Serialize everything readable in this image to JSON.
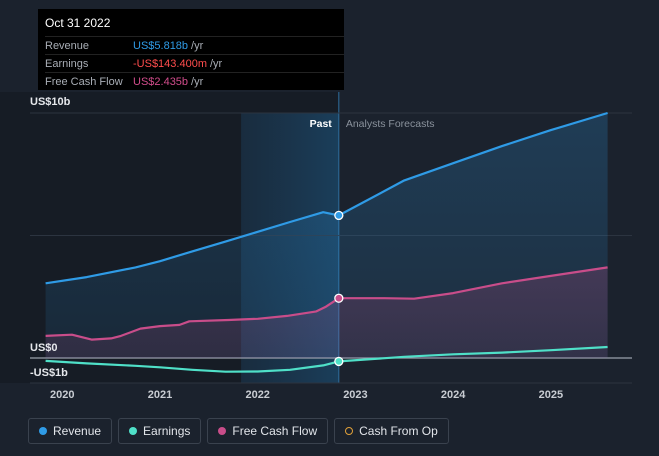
{
  "tooltip": {
    "date": "Oct 31 2022",
    "rows": [
      {
        "label": "Revenue",
        "value": "US$5.818b",
        "unit": "/yr",
        "color": "#2f9be6"
      },
      {
        "label": "Earnings",
        "value": "-US$143.400m",
        "unit": "/yr",
        "color": "#ff4d4d"
      },
      {
        "label": "Free Cash Flow",
        "value": "US$2.435b",
        "unit": "/yr",
        "color": "#d24d8c"
      }
    ]
  },
  "legend": [
    {
      "label": "Revenue",
      "color": "#2f9be6",
      "hollow": false
    },
    {
      "label": "Earnings",
      "color": "#4fe0c8",
      "hollow": false
    },
    {
      "label": "Free Cash Flow",
      "color": "#c94d8a",
      "hollow": false
    },
    {
      "label": "Cash From Op",
      "color": "#e0a03a",
      "hollow": true
    }
  ],
  "chart_data": {
    "type": "line",
    "y_tick_labels": [
      "US$10b",
      "US$0",
      "-US$1b"
    ],
    "ylim": [
      -1,
      10
    ],
    "xlim": [
      2019.67,
      2025.83
    ],
    "x_ticks": [
      2020,
      2021,
      2022,
      2023,
      2024,
      2025
    ],
    "x_tick_labels": [
      "2020",
      "2021",
      "2022",
      "2023",
      "2024",
      "2025"
    ],
    "past_label": "Past",
    "forecast_label": "Analysts Forecasts",
    "current_date": 2022.83,
    "highlight_start": 2021.83,
    "series": [
      {
        "name": "Revenue",
        "color": "#2f9be6",
        "x": [
          2019.83,
          2020.25,
          2020.75,
          2021.0,
          2021.33,
          2021.67,
          2022.0,
          2022.33,
          2022.67,
          2022.83,
          2023.5,
          2024.0,
          2024.5,
          2025.0,
          2025.58
        ],
        "y": [
          3.05,
          3.3,
          3.7,
          3.95,
          4.35,
          4.75,
          5.15,
          5.55,
          5.95,
          5.82,
          7.25,
          7.95,
          8.65,
          9.3,
          10.0
        ]
      },
      {
        "name": "Earnings",
        "color": "#4fe0c8",
        "x": [
          2019.83,
          2020.25,
          2020.75,
          2021.0,
          2021.33,
          2021.67,
          2022.0,
          2022.33,
          2022.67,
          2022.83,
          2023.5,
          2024.0,
          2024.5,
          2025.0,
          2025.58
        ],
        "y": [
          -0.12,
          -0.22,
          -0.32,
          -0.38,
          -0.48,
          -0.56,
          -0.55,
          -0.48,
          -0.3,
          -0.14,
          0.05,
          0.15,
          0.22,
          0.32,
          0.45
        ]
      },
      {
        "name": "Free Cash Flow",
        "color": "#c94d8a",
        "x": [
          2019.83,
          2020.1,
          2020.3,
          2020.5,
          2020.6,
          2020.8,
          2021.0,
          2021.2,
          2021.3,
          2021.7,
          2022.0,
          2022.3,
          2022.6,
          2022.7,
          2022.83,
          2023.3,
          2023.6,
          2024.0,
          2024.5,
          2025.0,
          2025.58
        ],
        "y": [
          0.9,
          0.95,
          0.75,
          0.8,
          0.9,
          1.2,
          1.3,
          1.35,
          1.5,
          1.55,
          1.6,
          1.72,
          1.9,
          2.1,
          2.44,
          2.44,
          2.42,
          2.65,
          3.05,
          3.35,
          3.7
        ]
      }
    ]
  }
}
